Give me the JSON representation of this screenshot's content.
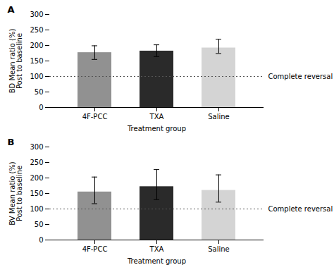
{
  "chart_data": [
    {
      "type": "bar",
      "title": "A",
      "categories": [
        "4F-PCC",
        "TXA",
        "Saline"
      ],
      "values": [
        177,
        182,
        192
      ],
      "errors_upper": [
        22,
        20,
        28
      ],
      "errors_lower": [
        22,
        18,
        18
      ],
      "colors": [
        "#919191",
        "#2a2a2a",
        "#d4d4d4"
      ],
      "xlabel": "Treatment group",
      "ylabel": "BD Mean ratio (%)\nPost to baseline",
      "ylim": [
        0,
        300
      ],
      "yticks": [
        0,
        50,
        100,
        150,
        200,
        250,
        300
      ],
      "grid": false,
      "annotations": [
        {
          "text": "Complete reversal",
          "y": 100
        }
      ]
    },
    {
      "type": "bar",
      "title": "B",
      "categories": [
        "4F-PCC",
        "TXA",
        "Saline"
      ],
      "values": [
        155,
        172,
        160
      ],
      "errors_upper": [
        48,
        55,
        50
      ],
      "errors_lower": [
        38,
        42,
        38
      ],
      "colors": [
        "#919191",
        "#2a2a2a",
        "#d4d4d4"
      ],
      "xlabel": "Treatment group",
      "ylabel": "BV Mean ratio (%)\nPost to baseline",
      "ylim": [
        0,
        300
      ],
      "yticks": [
        0,
        50,
        100,
        150,
        200,
        250,
        300
      ],
      "grid": false,
      "annotations": [
        {
          "text": "Complete reversal",
          "y": 100
        }
      ]
    }
  ]
}
